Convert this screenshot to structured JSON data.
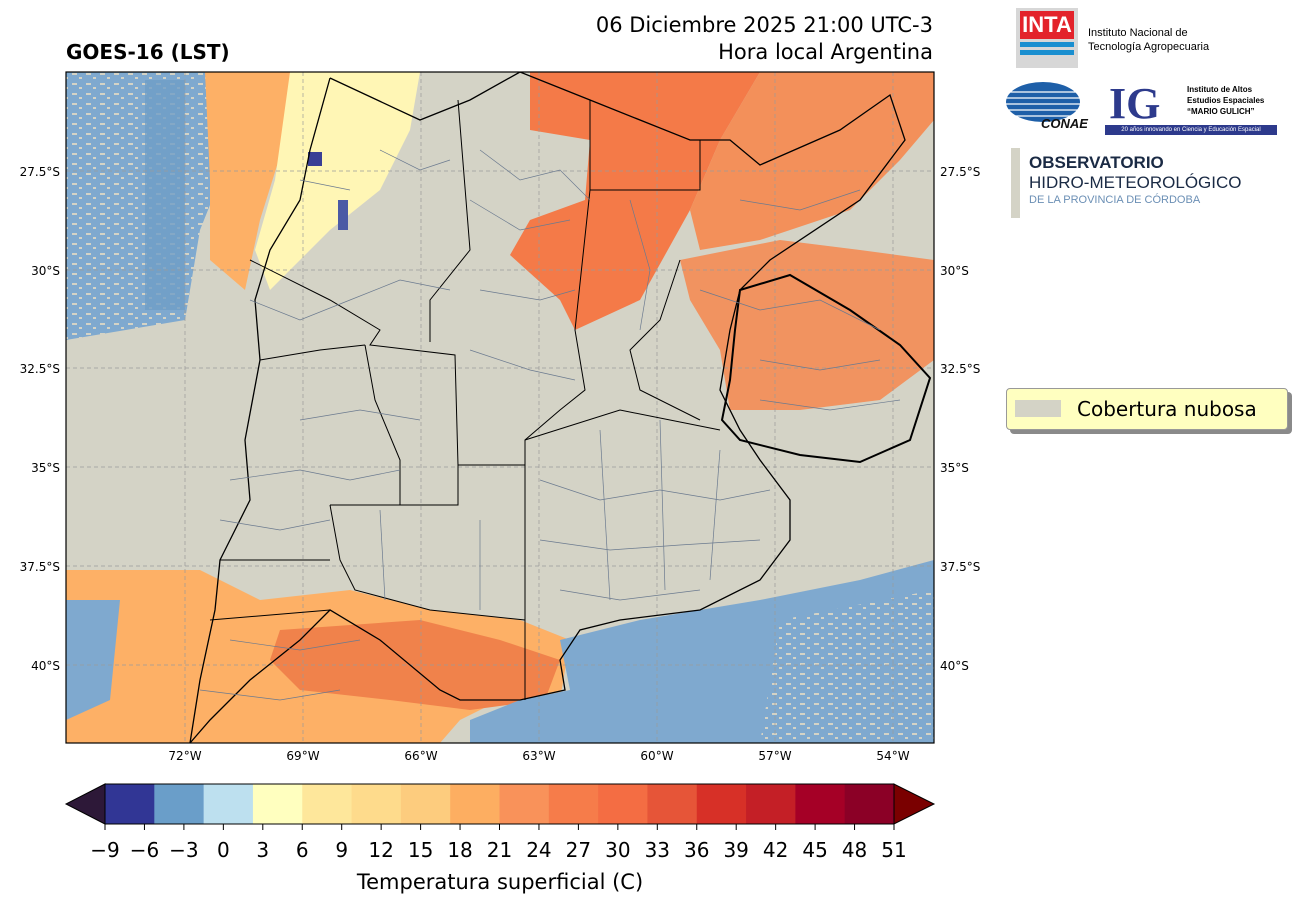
{
  "header": {
    "title": "GOES-16 (LST)",
    "date_line": "06 Diciembre 2025 21:00 UTC-3",
    "local_time": "Hora local Argentina"
  },
  "map": {
    "lat_labels": [
      "27.5°S",
      "30°S",
      "32.5°S",
      "35°S",
      "37.5°S",
      "40°S"
    ],
    "lon_labels": [
      "72°W",
      "69°W",
      "66°W",
      "63°W",
      "60°W",
      "57°W",
      "54°W"
    ],
    "lon_range": [
      -75,
      -53
    ],
    "lat_range": [
      -25.0,
      -42.0
    ]
  },
  "legend": {
    "label": "Cobertura nubosa",
    "swatch_color": "#d4d3c6"
  },
  "colorbar": {
    "ticks": [
      "−9",
      "−6",
      "−3",
      "0",
      "3",
      "6",
      "9",
      "12",
      "15",
      "18",
      "21",
      "24",
      "27",
      "30",
      "33",
      "36",
      "39",
      "42",
      "45",
      "48",
      "51"
    ],
    "title": "Temperatura superficial (C)",
    "colors": [
      "#313695",
      "#6a9ec9",
      "#bde0ef",
      "#ffffbf",
      "#fee79b",
      "#fedb8c",
      "#fdcc7e",
      "#fdae61",
      "#f9925a",
      "#f67c4a",
      "#f46d43",
      "#e65538",
      "#d73027",
      "#c41f26",
      "#a50026",
      "#8b0026"
    ],
    "under_color": "#2d1838",
    "over_color": "#7a0000"
  },
  "logos": {
    "inta_mark": "INTA",
    "inta_name_1": "Instituto Nacional de",
    "inta_name_2": "Tecnología Agropecuaria",
    "conae_mark": "CONAE",
    "ig_mark": "IG",
    "ig_name_1": "Instituto de Altos",
    "ig_name_2": "Estudios Espaciales",
    "ig_name_3": "“MARIO GULICH”",
    "ig_tagline": "20 años innovando en Ciencia y Educación Espacial",
    "obs_line_1": "OBSERVATORIO",
    "obs_line_2": "HIDRO-METEOROLÓGICO",
    "obs_line_3": "DE LA PROVINCIA DE CÓRDOBA"
  }
}
